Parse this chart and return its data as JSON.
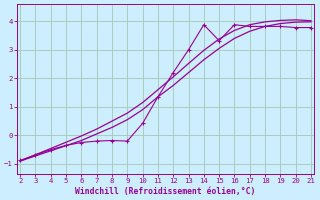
{
  "xlabel": "Windchill (Refroidissement éolien,°C)",
  "bg_color": "#cceeff",
  "line_color": "#990099",
  "grid_color": "#aaccbb",
  "x_ticks": [
    2,
    3,
    4,
    5,
    6,
    7,
    8,
    9,
    10,
    11,
    12,
    13,
    14,
    15,
    16,
    17,
    18,
    19,
    20,
    21
  ],
  "y_ticks": [
    -1,
    0,
    1,
    2,
    3,
    4
  ],
  "xlim": [
    1.8,
    21.2
  ],
  "ylim": [
    -1.35,
    4.6
  ],
  "line1_x": [
    2,
    3,
    4,
    5,
    6,
    7,
    8,
    9,
    10,
    11,
    12,
    13,
    14,
    15,
    16,
    17,
    18,
    19,
    20,
    21
  ],
  "line1_y": [
    -0.9,
    -0.72,
    -0.54,
    -0.36,
    -0.18,
    0.05,
    0.28,
    0.55,
    0.9,
    1.35,
    1.75,
    2.2,
    2.65,
    3.05,
    3.4,
    3.65,
    3.82,
    3.92,
    3.97,
    3.98
  ],
  "line2_x": [
    2,
    3,
    4,
    5,
    6,
    7,
    8,
    9,
    10,
    11,
    12,
    13,
    14,
    15,
    16,
    17,
    18,
    19,
    20,
    21
  ],
  "line2_y": [
    -0.9,
    -0.68,
    -0.46,
    -0.24,
    -0.02,
    0.22,
    0.5,
    0.78,
    1.15,
    1.6,
    2.05,
    2.52,
    2.98,
    3.38,
    3.68,
    3.88,
    3.98,
    4.03,
    4.05,
    4.02
  ],
  "scatter_x": [
    2,
    3,
    4,
    5,
    6,
    7,
    8,
    9,
    10,
    11,
    12,
    13,
    14,
    15,
    16,
    17,
    18,
    19,
    20,
    21
  ],
  "scatter_y": [
    -0.88,
    -0.68,
    -0.5,
    -0.35,
    -0.25,
    -0.2,
    -0.18,
    -0.2,
    0.42,
    1.35,
    2.2,
    3.0,
    3.88,
    3.32,
    3.88,
    3.82,
    3.82,
    3.82,
    3.78,
    3.78
  ]
}
